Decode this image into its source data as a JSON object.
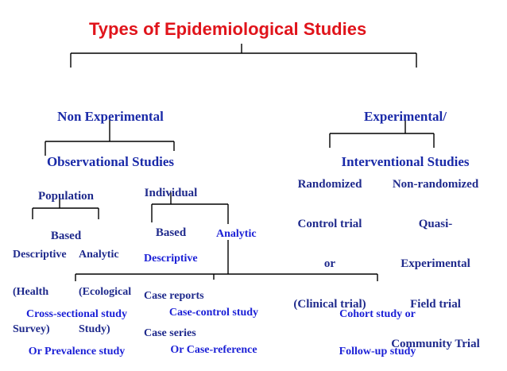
{
  "title": "Types of Epidemiological Studies",
  "non_experimental": {
    "line1": "Non Experimental",
    "line2": "Observational Studies",
    "population": {
      "line1": "Population",
      "line2": "Based"
    },
    "individual": {
      "line1": "Individual",
      "line2": "Based"
    },
    "population_descriptive": {
      "line1": "Descriptive",
      "line2": "(Health",
      "line3": "Survey)"
    },
    "population_analytic": {
      "line1": "Analytic",
      "line2": "(Ecological",
      "line3": "Study)"
    },
    "individual_descriptive": {
      "line1": "Descriptive",
      "line2": "Case reports",
      "line3": "Case series"
    },
    "individual_analytic": "Analytic",
    "cross_sectional": {
      "line1": "Cross-sectional study",
      "line2": "Or Prevalence study"
    },
    "case_control": {
      "line1": "Case-control study",
      "line2": "Or Case-reference"
    },
    "cohort": {
      "line1": "Cohort study or",
      "line2": "Follow-up study"
    }
  },
  "experimental": {
    "line1": "Experimental/",
    "line2": "Interventional Studies",
    "randomized": {
      "line1": "Randomized",
      "line2": "Control trial",
      "line3": "or",
      "line4": "(Clinical trial)"
    },
    "non_randomized": {
      "line1": "Non-randomized",
      "line2": "Quasi-",
      "line3": "Experimental",
      "line4": "Field trial",
      "line5": "Community Trial"
    }
  }
}
